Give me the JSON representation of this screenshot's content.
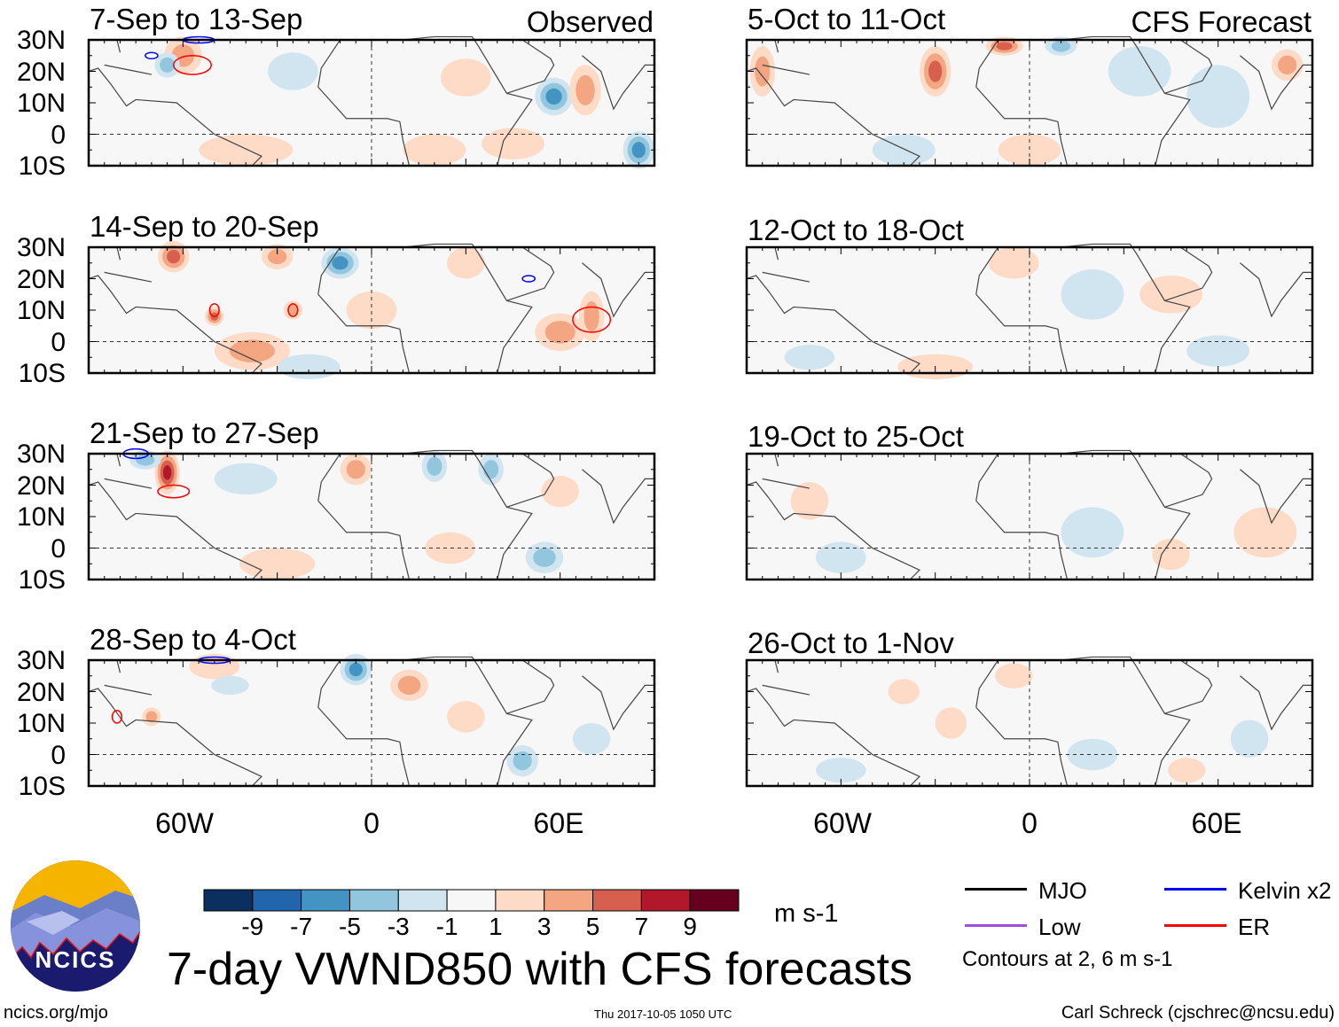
{
  "header": {
    "observed_label": "Observed",
    "forecast_label": "CFS Forecast"
  },
  "lat_labels": [
    "30N",
    "20N",
    "10N",
    "0",
    "10S"
  ],
  "lon_labels": [
    "60W",
    "0",
    "60E"
  ],
  "panels": {
    "observed": [
      {
        "title": "7-Sep to 13-Sep"
      },
      {
        "title": "14-Sep to 20-Sep"
      },
      {
        "title": "21-Sep to 27-Sep"
      },
      {
        "title": "28-Sep to 4-Oct"
      }
    ],
    "forecast": [
      {
        "title": "5-Oct to 11-Oct"
      },
      {
        "title": "12-Oct to 18-Oct"
      },
      {
        "title": "19-Oct to 25-Oct"
      },
      {
        "title": "26-Oct to 1-Nov"
      }
    ]
  },
  "colorbar": {
    "colors": [
      "#0b2f5e",
      "#2166ac",
      "#4393c3",
      "#92c5de",
      "#d1e5f0",
      "#f7f7f7",
      "#fddbc7",
      "#f4a582",
      "#d6604d",
      "#b2182b",
      "#67001f"
    ],
    "ticks": [
      "-9",
      "-7",
      "-5",
      "-3",
      "-1",
      "1",
      "3",
      "5",
      "7",
      "9"
    ],
    "units": "m s-1"
  },
  "legend": {
    "items": [
      {
        "label": "MJO",
        "color": "#000000"
      },
      {
        "label": "Kelvin x2",
        "color": "#0000ff"
      },
      {
        "label": "Low",
        "color": "#9b4ee0"
      },
      {
        "label": "ER",
        "color": "#ff0000"
      }
    ],
    "contours_note": "Contours at 2, 6 m s-1"
  },
  "title": "7-day VWND850 with CFS forecasts",
  "logo_text": "NCICS",
  "footer": {
    "url": "ncics.org/mjo",
    "timestamp": "Thu 2017-10-05 1050 UTC",
    "author": "Carl Schreck (cjschrec@ncsu.edu)"
  },
  "chart_data": {
    "type": "heatmap",
    "variable": "850-hPa meridional wind anomaly",
    "units": "m s-1",
    "lon_range": [
      -90,
      90
    ],
    "lat_range": [
      -10,
      30
    ],
    "levels": [
      -9,
      -7,
      -5,
      -3,
      -1,
      1,
      3,
      5,
      7,
      9
    ],
    "features": [
      [
        [
          -60,
          25,
          6,
          6,
          3
        ],
        [
          -65,
          22,
          4,
          4,
          -3
        ],
        [
          -25,
          20,
          8,
          6,
          -2
        ],
        [
          30,
          18,
          8,
          6,
          2
        ],
        [
          58,
          12,
          6,
          6,
          -5
        ],
        [
          68,
          14,
          5,
          8,
          4
        ],
        [
          85,
          -5,
          5,
          6,
          -6
        ],
        [
          -40,
          -5,
          15,
          5,
          1
        ],
        [
          20,
          -5,
          10,
          5,
          1
        ],
        [
          45,
          -3,
          10,
          5,
          2
        ]
      ],
      [
        [
          -63,
          27,
          5,
          5,
          6
        ],
        [
          -10,
          25,
          6,
          5,
          -5
        ],
        [
          -30,
          27,
          5,
          4,
          3
        ],
        [
          -50,
          8,
          3,
          3,
          5
        ],
        [
          -25,
          10,
          3,
          3,
          4
        ],
        [
          -38,
          -3,
          12,
          6,
          3
        ],
        [
          60,
          3,
          8,
          6,
          4
        ],
        [
          70,
          8,
          4,
          8,
          3
        ],
        [
          0,
          10,
          8,
          6,
          2
        ],
        [
          30,
          25,
          6,
          5,
          2
        ],
        [
          -20,
          -8,
          10,
          4,
          -2
        ]
      ],
      [
        [
          -65,
          24,
          4,
          7,
          8
        ],
        [
          -72,
          28,
          5,
          3,
          -3
        ],
        [
          -5,
          25,
          5,
          5,
          3
        ],
        [
          20,
          26,
          4,
          5,
          -3
        ],
        [
          38,
          25,
          4,
          5,
          -4
        ],
        [
          55,
          -3,
          6,
          5,
          -3
        ],
        [
          25,
          0,
          8,
          5,
          2
        ],
        [
          -40,
          22,
          10,
          5,
          -1
        ],
        [
          60,
          18,
          6,
          5,
          2
        ],
        [
          -30,
          -5,
          12,
          5,
          1
        ]
      ],
      [
        [
          -5,
          27,
          5,
          5,
          -5
        ],
        [
          12,
          22,
          6,
          5,
          3
        ],
        [
          -50,
          28,
          8,
          4,
          2
        ],
        [
          -45,
          22,
          6,
          3,
          -2
        ],
        [
          -70,
          12,
          3,
          3,
          4
        ],
        [
          70,
          5,
          6,
          5,
          -2
        ],
        [
          48,
          -2,
          5,
          5,
          -3
        ],
        [
          30,
          12,
          6,
          5,
          2
        ]
      ],
      [
        [
          -85,
          20,
          4,
          8,
          4
        ],
        [
          -30,
          20,
          5,
          8,
          5
        ],
        [
          -8,
          28,
          6,
          3,
          6
        ],
        [
          10,
          28,
          5,
          3,
          -4
        ],
        [
          35,
          20,
          10,
          8,
          -2
        ],
        [
          60,
          12,
          10,
          10,
          -2
        ],
        [
          82,
          22,
          5,
          5,
          4
        ],
        [
          -40,
          -5,
          10,
          5,
          -1
        ],
        [
          0,
          -5,
          10,
          5,
          1
        ]
      ],
      [
        [
          -5,
          25,
          8,
          5,
          1
        ],
        [
          20,
          15,
          10,
          8,
          -1
        ],
        [
          45,
          15,
          10,
          6,
          1
        ],
        [
          -30,
          -8,
          12,
          4,
          1
        ],
        [
          60,
          -3,
          10,
          5,
          -1
        ],
        [
          -70,
          -5,
          8,
          4,
          -1
        ]
      ],
      [
        [
          -70,
          15,
          6,
          6,
          1
        ],
        [
          75,
          5,
          10,
          8,
          1
        ],
        [
          -60,
          -3,
          8,
          5,
          -1
        ],
        [
          20,
          5,
          10,
          8,
          -1
        ],
        [
          45,
          -2,
          6,
          5,
          1
        ]
      ],
      [
        [
          -5,
          25,
          6,
          4,
          1
        ],
        [
          -40,
          20,
          5,
          4,
          1
        ],
        [
          -25,
          10,
          5,
          5,
          1
        ],
        [
          -60,
          -5,
          8,
          4,
          -1
        ],
        [
          20,
          0,
          8,
          5,
          -1
        ],
        [
          70,
          5,
          6,
          6,
          -1
        ],
        [
          50,
          -5,
          6,
          4,
          1
        ]
      ]
    ],
    "contours": [
      [
        [
          "#ff0000",
          -57,
          22,
          6,
          3
        ],
        [
          "#0000ff",
          -55,
          30,
          5,
          1
        ],
        [
          "#0000ff",
          -70,
          25,
          2,
          1
        ]
      ],
      [
        [
          "#ff0000",
          -50,
          10,
          1.5,
          2
        ],
        [
          "#ff0000",
          -25,
          10,
          1.5,
          2
        ],
        [
          "#ff0000",
          70,
          7,
          6,
          4
        ],
        [
          "#0000ff",
          50,
          20,
          2,
          1
        ]
      ],
      [
        [
          "#ff0000",
          -63,
          18,
          5,
          2
        ],
        [
          "#0000ff",
          -75,
          30,
          4,
          1.5
        ]
      ],
      [
        [
          "#ff0000",
          -81,
          12,
          1.5,
          2
        ],
        [
          "#0000ff",
          -50,
          30,
          5,
          1
        ]
      ],
      [],
      [],
      [],
      []
    ]
  }
}
